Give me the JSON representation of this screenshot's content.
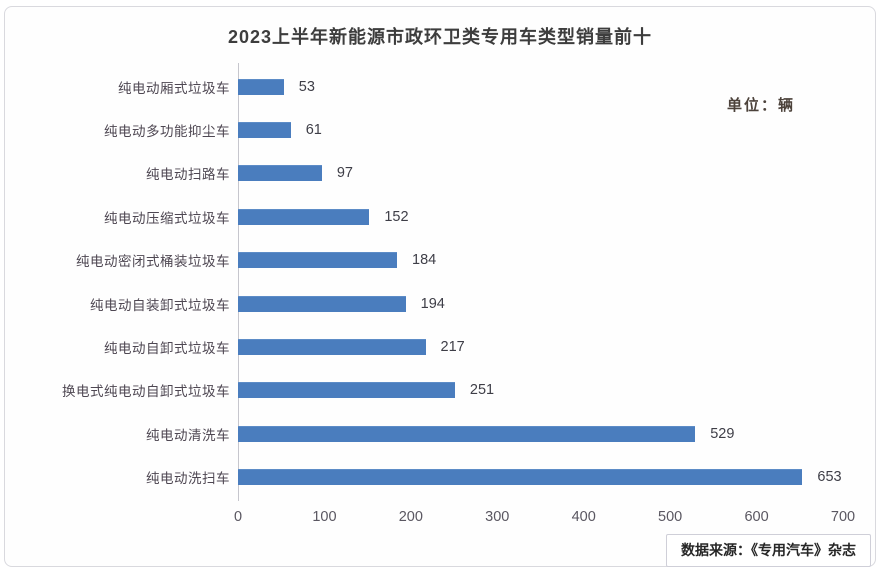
{
  "card": {
    "title": "2023上半年新能源市政环卫类专用车类型销量前十",
    "unit_label": "单位：辆",
    "source_label": "数据来源：《专用汽车》杂志"
  },
  "chart_data": {
    "type": "bar",
    "orientation": "horizontal",
    "title": "2023上半年新能源市政环卫类专用车类型销量前十",
    "unit": "辆",
    "categories": [
      "纯电动厢式垃圾车",
      "纯电动多功能抑尘车",
      "纯电动扫路车",
      "纯电动压缩式垃圾车",
      "纯电动密闭式桶装垃圾车",
      "纯电动自装卸式垃圾车",
      "纯电动自卸式垃圾车",
      "换电式纯电动自卸式垃圾车",
      "纯电动清洗车",
      "纯电动洗扫车"
    ],
    "values": [
      53,
      61,
      97,
      152,
      184,
      194,
      217,
      251,
      529,
      653
    ],
    "xlim": [
      0,
      700
    ],
    "x_ticks": [
      0,
      100,
      200,
      300,
      400,
      500,
      600,
      700
    ],
    "bar_color": "#4a7dbe",
    "grid": false,
    "value_labels": true,
    "legend": "none",
    "source": "数据来源：《专用汽车》杂志"
  }
}
